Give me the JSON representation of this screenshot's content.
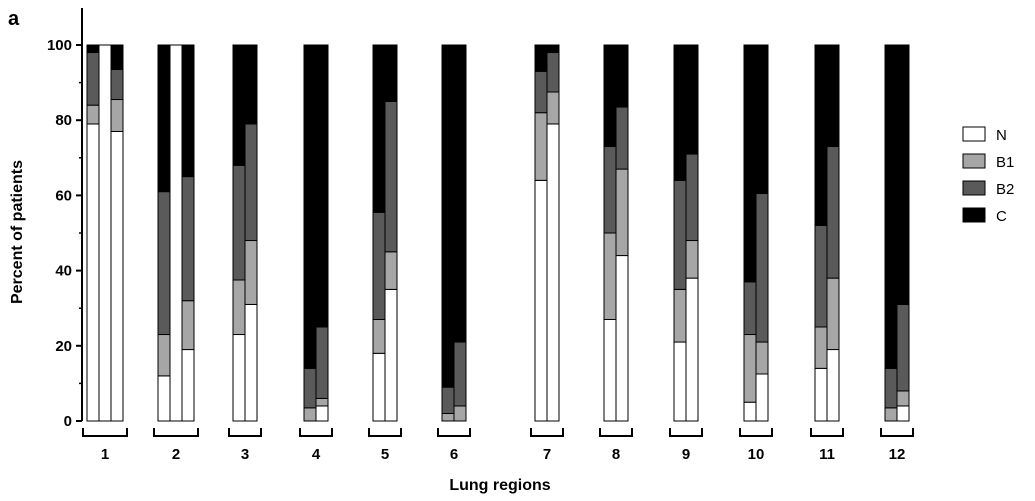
{
  "panel_label": "a",
  "chart_data": {
    "type": "bar",
    "stacked": true,
    "title": "",
    "xlabel": "Lung regions",
    "ylabel": "Percent of patients",
    "ylim": [
      0,
      100
    ],
    "yticks": [
      0,
      20,
      40,
      60,
      80,
      100
    ],
    "grid": false,
    "legend_position": "right",
    "categories": [
      "1",
      "2",
      "3",
      "4",
      "5",
      "6",
      "7",
      "8",
      "9",
      "10",
      "11",
      "12"
    ],
    "series": [
      {
        "name": "N",
        "color": "#ffffff"
      },
      {
        "name": "B1",
        "color": "#a6a6a6"
      },
      {
        "name": "B2",
        "color": "#5a5a5a"
      },
      {
        "name": "C",
        "color": "#000000"
      }
    ],
    "groups": [
      {
        "category": "1",
        "bars": [
          [
            79,
            5,
            14,
            2
          ],
          [
            100,
            0,
            0,
            0
          ],
          [
            77,
            8.5,
            8,
            6.5
          ]
        ]
      },
      {
        "category": "2",
        "bars": [
          [
            12,
            11,
            38,
            39
          ],
          [
            100,
            0,
            0,
            0
          ],
          [
            19,
            13,
            33,
            35
          ]
        ]
      },
      {
        "category": "3",
        "bars": [
          [
            23,
            14.5,
            30.5,
            32
          ],
          [
            31,
            17,
            31,
            21
          ]
        ]
      },
      {
        "category": "4",
        "bars": [
          [
            0,
            3.5,
            10.5,
            86
          ],
          [
            4,
            2,
            19,
            75
          ]
        ]
      },
      {
        "category": "5",
        "bars": [
          [
            18,
            9,
            28.5,
            44.5
          ],
          [
            35,
            10,
            40,
            15
          ]
        ]
      },
      {
        "category": "6",
        "bars": [
          [
            0,
            2,
            7,
            91
          ],
          [
            0,
            4,
            17,
            79
          ]
        ]
      },
      {
        "category": "7",
        "bars": [
          [
            64,
            18,
            11,
            7
          ],
          [
            79,
            8.5,
            10.5,
            2
          ]
        ]
      },
      {
        "category": "8",
        "bars": [
          [
            27,
            23,
            23,
            27
          ],
          [
            44,
            23,
            16.5,
            16.5
          ]
        ]
      },
      {
        "category": "9",
        "bars": [
          [
            21,
            14,
            29,
            36
          ],
          [
            38,
            10,
            23,
            29
          ]
        ]
      },
      {
        "category": "10",
        "bars": [
          [
            5,
            18,
            14,
            63
          ],
          [
            12.5,
            8.5,
            39.5,
            39.5
          ]
        ]
      },
      {
        "category": "11",
        "bars": [
          [
            14,
            11,
            27,
            48
          ],
          [
            19,
            19,
            35,
            27
          ]
        ]
      },
      {
        "category": "12",
        "bars": [
          [
            0,
            3.5,
            10.5,
            86
          ],
          [
            4,
            4,
            23,
            69
          ]
        ]
      }
    ]
  }
}
